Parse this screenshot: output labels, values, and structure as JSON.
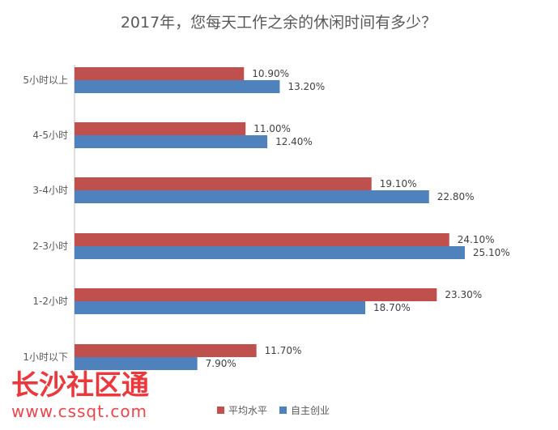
{
  "chart_data": {
    "type": "bar",
    "orientation": "horizontal",
    "title": "2017年，您每天工作之余的休闲时间有多少？",
    "categories": [
      "5小时以上",
      "4-5小时",
      "3-4小时",
      "2-3小时",
      "1-2小时",
      "1小时以下"
    ],
    "series": [
      {
        "name": "平均水平",
        "values": [
          10.9,
          11.0,
          19.1,
          24.1,
          23.3,
          11.7
        ],
        "labels": [
          "10.90%",
          "11.00%",
          "19.10%",
          "24.10%",
          "23.30%",
          "11.70%"
        ]
      },
      {
        "name": "自主创业",
        "values": [
          13.2,
          12.4,
          22.8,
          25.1,
          18.7,
          7.9
        ],
        "labels": [
          "13.20%",
          "12.40%",
          "22.80%",
          "25.10%",
          "18.70%",
          "7.90%"
        ]
      }
    ],
    "xlim": [
      0,
      30
    ],
    "grid": false,
    "legend_position": "bottom-center",
    "colors": {
      "series_1": "#c0504d",
      "series_2": "#4f81bd"
    }
  },
  "watermark": {
    "name": "长沙社区通",
    "url": "www.cssqt.com",
    "color": "#e8151b"
  }
}
